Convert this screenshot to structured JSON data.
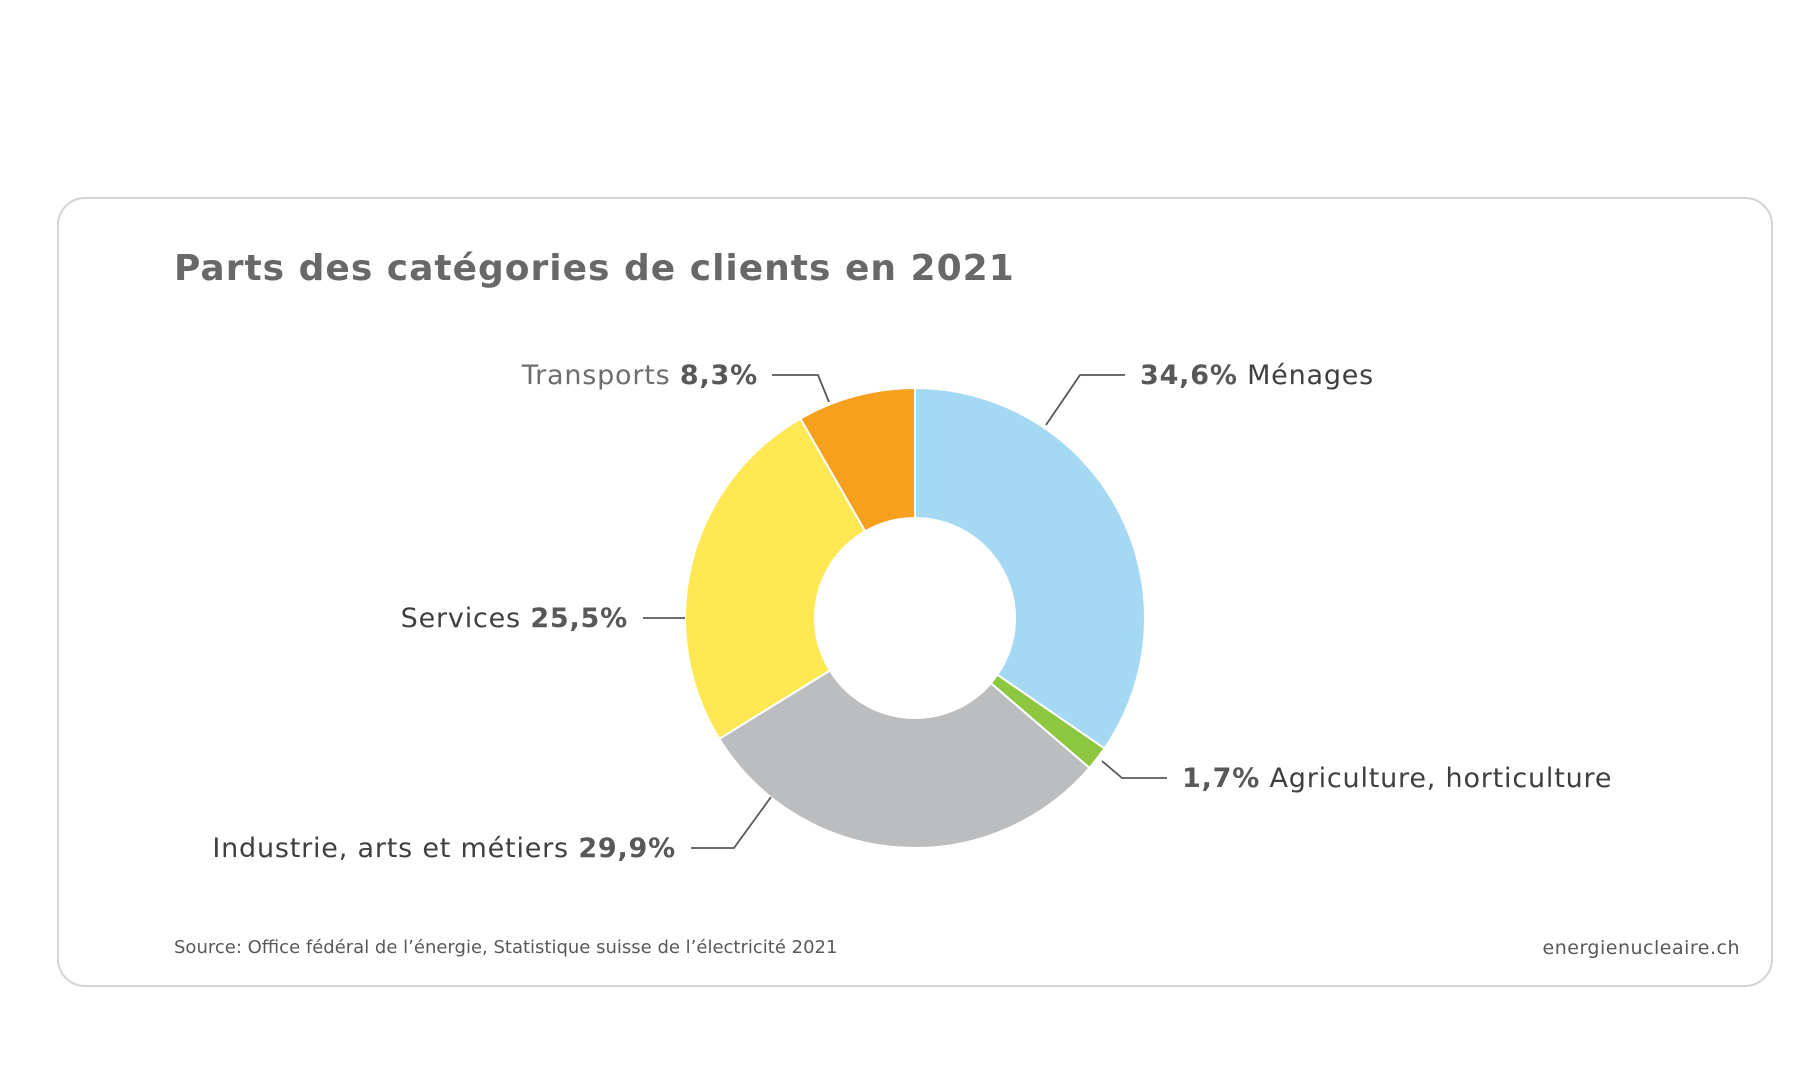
{
  "title": "Parts des catégories de clients en 2021",
  "source": "Source: Office fédéral de l’énergie, Statistique suisse de l’électricité 2021",
  "website": "energienucleaire.ch",
  "colors": {
    "menages": "#a5d8f3",
    "agriculture": "#8dc63f",
    "industrie": "#bcbdbf",
    "services": "#ffe853",
    "transports": "#f7a01e"
  },
  "chart_data": {
    "type": "pie",
    "variant": "donut",
    "title": "Parts des catégories de clients en 2021",
    "slices": [
      {
        "key": "menages",
        "name": "Ménages",
        "value": 34.6,
        "value_label": "34,6%",
        "color": "#a5d8f3"
      },
      {
        "key": "agriculture",
        "name": "Agriculture, horticulture",
        "value": 1.7,
        "value_label": "1,7%",
        "color": "#8dc63f"
      },
      {
        "key": "industrie",
        "name": "Industrie, arts et métiers",
        "value": 29.9,
        "value_label": "29,9%",
        "color": "#bcbdbf"
      },
      {
        "key": "services",
        "name": "Services",
        "value": 25.5,
        "value_label": "25,5%",
        "color": "#ffe853"
      },
      {
        "key": "transports",
        "name": "Transports",
        "value": 8.3,
        "value_label": "8,3%",
        "color": "#f7a01e"
      }
    ]
  }
}
